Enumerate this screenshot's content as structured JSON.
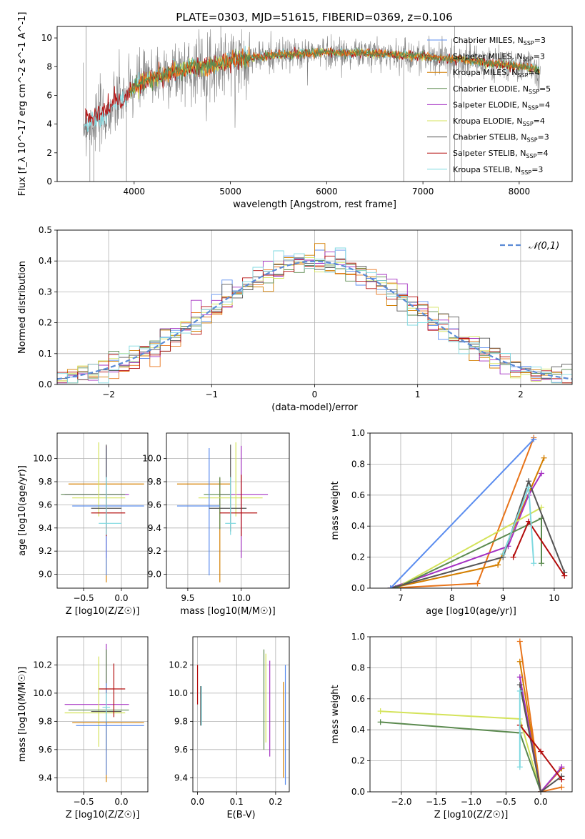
{
  "figure": {
    "title": "PLATE=0303, MJD=51615, FIBERID=0369, z=0.106",
    "colors": {
      "Chabrier MILES": "#5b8def",
      "Salpeter MILES": "#e8741a",
      "Kroupa MILES": "#d47f00",
      "Chabrier ELODIE": "#5b8a4f",
      "Salpeter ELODIE": "#a431c2",
      "Kroupa ELODIE": "#d4e35a",
      "Chabrier STELIB": "#555555",
      "Salpeter STELIB": "#b30d0d",
      "Kroupa STELIB": "#7fd9e0",
      "data": "#808080",
      "normal": "#5b8bd6"
    }
  },
  "chart_data": [
    {
      "id": "spectrum",
      "type": "line",
      "title": "PLATE=0303, MJD=51615, FIBERID=0369, z=0.106",
      "xlabel": "wavelength [Angstrom, rest frame]",
      "ylabel": "Flux [f_λ 10^-17 erg cm^-2 s^-1 A^-1]",
      "xlim": [
        3200,
        8550
      ],
      "ylim": [
        0,
        10.8
      ],
      "xticks": [
        4000,
        5000,
        6000,
        7000,
        8000
      ],
      "yticks": [
        0,
        2,
        4,
        6,
        8,
        10
      ],
      "legend_position": "top-right",
      "legend": [
        "Chabrier MILES, N_SSP=3",
        "Salpeter MILES, N_SSP=3",
        "Kroupa MILES, N_SSP=4",
        "Chabrier ELODIE, N_SSP=5",
        "Salpeter ELODIE, N_SSP=4",
        "Kroupa ELODIE, N_SSP=4",
        "Chabrier STELIB, N_SSP=3",
        "Salpeter STELIB, N_SSP=4",
        "Kroupa STELIB, N_SSP=3"
      ],
      "continuum_x": [
        3500,
        3600,
        3700,
        3800,
        3900,
        4000,
        4200,
        4400,
        4600,
        4800,
        5000,
        5200,
        5500,
        6000,
        6500,
        7000,
        7500,
        8000,
        8200
      ],
      "continuum_y": [
        4.0,
        4.2,
        4.5,
        5.3,
        5.9,
        6.6,
        7.3,
        7.6,
        7.9,
        8.1,
        8.4,
        8.6,
        8.8,
        9.0,
        8.9,
        8.7,
        8.4,
        8.0,
        7.8
      ]
    },
    {
      "id": "residuals",
      "type": "histogram",
      "xlabel": "(data-model)/error",
      "ylabel": "Normed distribution",
      "xlim": [
        -2.5,
        2.5
      ],
      "ylim": [
        0,
        0.5
      ],
      "xticks": [
        -2,
        -1,
        0,
        1,
        2
      ],
      "yticks": [
        0.0,
        0.1,
        0.2,
        0.3,
        0.4,
        0.5
      ],
      "legend_position": "top-right",
      "legend": [
        "𝒩(0,1)"
      ],
      "bin_width": 0.1
    },
    {
      "id": "age-vs-Z",
      "type": "scatter",
      "xlabel": "Z [log10(Z/Z☉)]",
      "ylabel": "age  [log10(age/yr)]",
      "xlim": [
        -0.85,
        0.35
      ],
      "ylim": [
        8.88,
        10.22
      ],
      "xticks": [
        -0.5,
        0.0
      ],
      "yticks": [
        9.0,
        9.2,
        9.4,
        9.6,
        9.8,
        10.0
      ],
      "points": [
        {
          "model": "Kroupa MILES",
          "x": -0.2,
          "y": 9.78,
          "xerr": [
            0.5,
            0.5
          ],
          "yerr": [
            0.85,
            0.05
          ]
        },
        {
          "model": "Salpeter ELODIE",
          "x": -0.2,
          "y": 9.69,
          "xerr": [
            0.55,
            0.3
          ],
          "yerr": [
            0.55,
            0.42
          ]
        },
        {
          "model": "Chabrier ELODIE",
          "x": -0.2,
          "y": 9.69,
          "xerr": [
            0.6,
            0.25
          ],
          "yerr": [
            0.3,
            0.15
          ]
        },
        {
          "model": "Kroupa ELODIE",
          "x": -0.3,
          "y": 9.66,
          "xerr": [
            0.35,
            0.35
          ],
          "yerr": [
            0.16,
            0.48
          ]
        },
        {
          "model": "Chabrier MILES",
          "x": -0.2,
          "y": 9.59,
          "xerr": [
            0.45,
            0.5
          ],
          "yerr": [
            0.6,
            0.5
          ]
        },
        {
          "model": "Chabrier STELIB",
          "x": -0.2,
          "y": 9.57,
          "xerr": [
            0.2,
            0.2
          ],
          "yerr": [
            0.2,
            0.55
          ]
        },
        {
          "model": "Salpeter STELIB",
          "x": -0.2,
          "y": 9.53,
          "xerr": [
            0.2,
            0.25
          ],
          "yerr": [
            0.2,
            0.2
          ]
        },
        {
          "model": "Kroupa STELIB",
          "x": -0.2,
          "y": 9.44,
          "xerr": [
            0.1,
            0.2
          ],
          "yerr": [
            0.1,
            0.4
          ]
        }
      ]
    },
    {
      "id": "age-vs-mass",
      "type": "scatter",
      "xlabel": "mass [log10(M/M☉)]",
      "xlim": [
        9.3,
        10.45
      ],
      "ylim": [
        8.88,
        10.22
      ],
      "xticks": [
        9.5,
        10.0
      ],
      "yticks": [
        9.0,
        9.2,
        9.4,
        9.6,
        9.8,
        10.0
      ],
      "points": [
        {
          "model": "Kroupa MILES",
          "x": 9.8,
          "y": 9.78,
          "xerr": [
            0.4,
            0.1
          ],
          "yerr": [
            0.85,
            0.05
          ]
        },
        {
          "model": "Salpeter ELODIE",
          "x": 10.0,
          "y": 9.69,
          "xerr": [
            0.2,
            0.25
          ],
          "yerr": [
            0.55,
            0.42
          ]
        },
        {
          "model": "Chabrier ELODIE",
          "x": 9.8,
          "y": 9.69,
          "xerr": [
            0.15,
            0.1
          ],
          "yerr": [
            0.3,
            0.15
          ]
        },
        {
          "model": "Kroupa ELODIE",
          "x": 9.95,
          "y": 9.66,
          "xerr": [
            0.35,
            0.25
          ],
          "yerr": [
            0.16,
            0.48
          ]
        },
        {
          "model": "Chabrier MILES",
          "x": 9.7,
          "y": 9.59,
          "xerr": [
            0.3,
            0.1
          ],
          "yerr": [
            0.6,
            0.5
          ]
        },
        {
          "model": "Chabrier STELIB",
          "x": 9.9,
          "y": 9.57,
          "xerr": [
            0.2,
            0.15
          ],
          "yerr": [
            0.2,
            0.55
          ]
        },
        {
          "model": "Salpeter STELIB",
          "x": 10.0,
          "y": 9.53,
          "xerr": [
            0.2,
            0.15
          ],
          "yerr": [
            0.2,
            0.33
          ]
        },
        {
          "model": "Kroupa STELIB",
          "x": 9.9,
          "y": 9.44,
          "xerr": [
            0.05,
            0.05
          ],
          "yerr": [
            0.1,
            0.4
          ]
        }
      ]
    },
    {
      "id": "weight-vs-age",
      "type": "line",
      "xlabel": "age  [log10(age/yr)]",
      "ylabel": "mass weight",
      "xlim": [
        6.4,
        10.35
      ],
      "ylim": [
        0,
        1.0
      ],
      "xticks": [
        7,
        8,
        9,
        10
      ],
      "yticks": [
        0.0,
        0.2,
        0.4,
        0.6,
        0.8,
        1.0
      ],
      "series": [
        {
          "model": "Salpeter MILES",
          "x": [
            6.8,
            8.5,
            9.6
          ],
          "y": [
            0.0,
            0.03,
            0.97
          ]
        },
        {
          "model": "Kroupa MILES",
          "x": [
            6.8,
            8.9,
            9.8
          ],
          "y": [
            0.0,
            0.15,
            0.84
          ]
        },
        {
          "model": "Salpeter ELODIE",
          "x": [
            6.8,
            9.1,
            9.5,
            9.75
          ],
          "y": [
            0.0,
            0.27,
            0.6,
            0.74
          ]
        },
        {
          "model": "Kroupa ELODIE",
          "x": [
            6.9,
            9.75
          ],
          "y": [
            0.0,
            0.52
          ]
        },
        {
          "model": "Chabrier ELODIE",
          "x": [
            6.9,
            9.75,
            9.75
          ],
          "y": [
            0.0,
            0.45,
            0.16
          ]
        },
        {
          "model": "Chabrier STELIB",
          "x": [
            6.8,
            9.0,
            9.5,
            10.2
          ],
          "y": [
            0.0,
            0.2,
            0.69,
            0.1
          ]
        },
        {
          "model": "Salpeter STELIB",
          "x": [
            9.2,
            9.5,
            10.2
          ],
          "y": [
            0.2,
            0.43,
            0.08
          ]
        },
        {
          "model": "Kroupa STELIB",
          "x": [
            9.0,
            9.5,
            9.6
          ],
          "y": [
            0.22,
            0.65,
            0.16
          ]
        },
        {
          "model": "Chabrier MILES",
          "x": [
            6.8,
            9.6
          ],
          "y": [
            0.0,
            0.96
          ]
        }
      ]
    },
    {
      "id": "mass-vs-Z",
      "type": "scatter",
      "xlabel": "Z [log10(Z/Z☉)]",
      "ylabel": "mass [log10(M/M☉)]",
      "xlim": [
        -0.85,
        0.35
      ],
      "ylim": [
        9.3,
        10.4
      ],
      "xticks": [
        -0.5,
        0.0
      ],
      "yticks": [
        9.4,
        9.6,
        9.8,
        10.0,
        10.2
      ],
      "points": [
        {
          "model": "Salpeter ELODIE",
          "x": -0.2,
          "y": 9.92,
          "xerr": [
            0.55,
            0.3
          ],
          "yerr": [
            0.05,
            0.43
          ]
        },
        {
          "model": "Kroupa ELODIE",
          "x": -0.3,
          "y": 9.86,
          "xerr": [
            0.45,
            0.35
          ],
          "yerr": [
            0.24,
            0.4
          ]
        },
        {
          "model": "Chabrier STELIB",
          "x": -0.2,
          "y": 9.87,
          "xerr": [
            0.2,
            0.2
          ],
          "yerr": [
            0.28,
            0.18
          ]
        },
        {
          "model": "Chabrier ELODIE",
          "x": -0.2,
          "y": 9.88,
          "xerr": [
            0.5,
            0.3
          ],
          "yerr": [
            0.28,
            0.43
          ]
        },
        {
          "model": "Kroupa MILES",
          "x": -0.2,
          "y": 9.79,
          "xerr": [
            0.45,
            0.5
          ],
          "yerr": [
            0.42,
            0.26
          ]
        },
        {
          "model": "Chabrier MILES",
          "x": -0.2,
          "y": 9.77,
          "xerr": [
            0.4,
            0.5
          ],
          "yerr": [
            0.35,
            0.3
          ]
        },
        {
          "model": "Salpeter STELIB",
          "x": -0.1,
          "y": 10.03,
          "xerr": [
            0.2,
            0.15
          ],
          "yerr": [
            0.2,
            0.18
          ]
        },
        {
          "model": "Kroupa STELIB",
          "x": -0.2,
          "y": 9.9,
          "xerr": [
            0.05,
            0.05
          ],
          "yerr": [
            0.1,
            0.1
          ]
        }
      ]
    },
    {
      "id": "mass-vs-ebv",
      "type": "scatter",
      "xlabel": "E(B-V)",
      "xlim": [
        -0.012,
        0.235
      ],
      "ylim": [
        9.3,
        10.4
      ],
      "xticks": [
        0.0,
        0.1,
        0.2
      ],
      "yticks": [
        9.4,
        9.6,
        9.8,
        10.0,
        10.2
      ],
      "points": [
        {
          "model": "Salpeter STELIB",
          "x": 0.0,
          "y": 10.05,
          "yerr": [
            0.13,
            0.15
          ]
        },
        {
          "model": "Kroupa STELIB",
          "x": 0.01,
          "y": 9.9,
          "yerr": [
            0.13,
            0.15
          ]
        },
        {
          "model": "Chabrier STELIB",
          "x": 0.008,
          "y": 9.9,
          "yerr": [
            0.13,
            0.15
          ]
        },
        {
          "model": "Chabrier ELODIE",
          "x": 0.17,
          "y": 9.95,
          "yerr": [
            0.35,
            0.36
          ]
        },
        {
          "model": "Kroupa ELODIE",
          "x": 0.175,
          "y": 9.95,
          "yerr": [
            0.3,
            0.33
          ]
        },
        {
          "model": "Salpeter ELODIE",
          "x": 0.185,
          "y": 9.9,
          "yerr": [
            0.35,
            0.33
          ]
        },
        {
          "model": "Kroupa MILES",
          "x": 0.22,
          "y": 9.7,
          "yerr": [
            0.3,
            0.38
          ]
        },
        {
          "model": "Chabrier MILES",
          "x": 0.225,
          "y": 9.8,
          "yerr": [
            0.45,
            0.4
          ]
        }
      ]
    },
    {
      "id": "weight-vs-Z",
      "type": "line",
      "xlabel": "Z [log10(Z/Z☉)]",
      "ylabel": "mass weight",
      "xlim": [
        -2.45,
        0.45
      ],
      "ylim": [
        0,
        1.0
      ],
      "xticks": [
        -2.0,
        -1.5,
        -1.0,
        -0.5,
        0.0
      ],
      "yticks": [
        0.0,
        0.2,
        0.4,
        0.6,
        0.8,
        1.0
      ],
      "series": [
        {
          "model": "Kroupa ELODIE",
          "x": [
            -2.3,
            -0.3,
            0.0
          ],
          "y": [
            0.52,
            0.47,
            0.0
          ]
        },
        {
          "model": "Chabrier ELODIE",
          "x": [
            -2.3,
            -0.3,
            0.0
          ],
          "y": [
            0.45,
            0.38,
            0.0
          ]
        },
        {
          "model": "Salpeter MILES",
          "x": [
            -0.3,
            0.0,
            0.3
          ],
          "y": [
            0.97,
            0.0,
            0.03
          ]
        },
        {
          "model": "Kroupa MILES",
          "x": [
            -0.3,
            0.0,
            0.3
          ],
          "y": [
            0.84,
            0.0,
            0.15
          ]
        },
        {
          "model": "Salpeter ELODIE",
          "x": [
            -0.3,
            0.0,
            0.3
          ],
          "y": [
            0.74,
            0.0,
            0.16
          ]
        },
        {
          "model": "Chabrier STELIB",
          "x": [
            -0.3,
            0.0,
            0.3
          ],
          "y": [
            0.69,
            0.0,
            0.1
          ]
        },
        {
          "model": "Salpeter STELIB",
          "x": [
            -0.3,
            0.0,
            0.3
          ],
          "y": [
            0.43,
            0.26,
            0.08
          ]
        },
        {
          "model": "Kroupa STELIB",
          "x": [
            -0.3,
            -0.3
          ],
          "y": [
            0.65,
            0.16
          ]
        }
      ]
    }
  ]
}
